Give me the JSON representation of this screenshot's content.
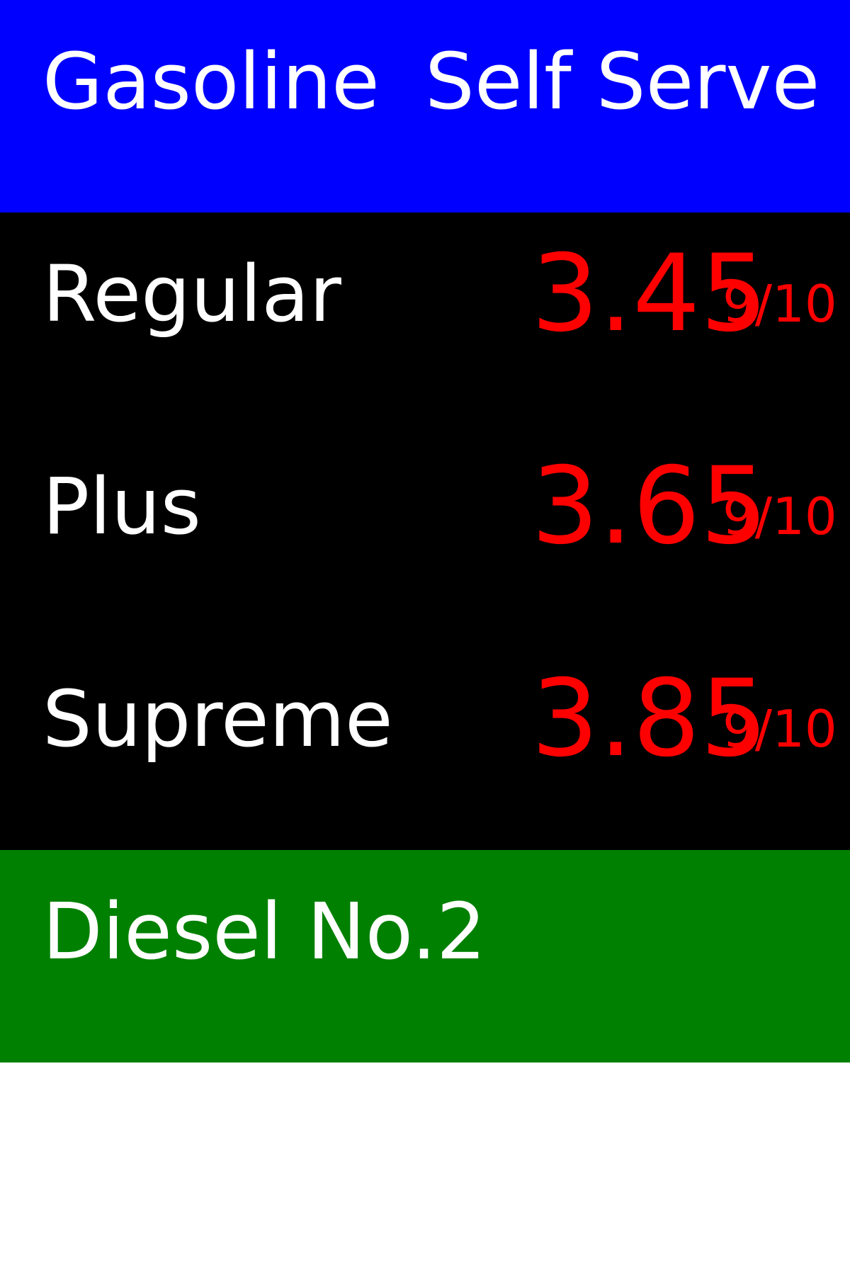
{
  "header": {
    "left": "Gasoline",
    "right": "Self Serve",
    "color": "#0000ff"
  },
  "prices": [
    {
      "grade": "Regular",
      "price": "3.45",
      "fraction": "9/10"
    },
    {
      "grade": "Plus",
      "price": "3.65",
      "fraction": "9/10"
    },
    {
      "grade": "Supreme",
      "price": "3.85",
      "fraction": "9/10"
    }
  ],
  "diesel": {
    "label": "Diesel No.2",
    "color": "#008000"
  },
  "colors": {
    "row_bg": "#000000",
    "label_text": "#ffffff",
    "price_text": "#ff0000",
    "page_bg": "#ffffff"
  }
}
